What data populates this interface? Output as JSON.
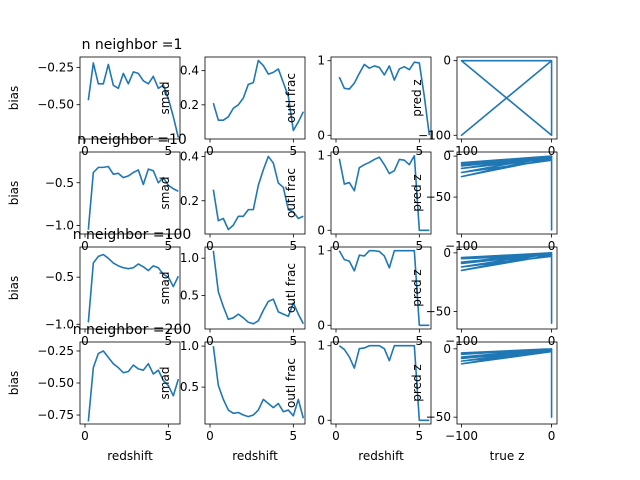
{
  "colors": {
    "series": "#1f77b4",
    "axes": "#000000",
    "background": "#ffffff"
  },
  "chart_data": [
    {
      "type": "line",
      "row_title": "n neighbor =1",
      "ylabel": "bias",
      "xlabel": "",
      "xlim": [
        -0.3,
        5.7
      ],
      "ylim": [
        -0.73,
        -0.18
      ],
      "x": [
        0.2,
        0.5,
        0.8,
        1.1,
        1.4,
        1.7,
        2.0,
        2.3,
        2.6,
        2.9,
        3.2,
        3.5,
        3.8,
        4.1,
        4.4,
        4.7,
        5.0,
        5.3,
        5.6
      ],
      "y": [
        -0.47,
        -0.22,
        -0.36,
        -0.36,
        -0.23,
        -0.37,
        -0.39,
        -0.29,
        -0.36,
        -0.28,
        -0.29,
        -0.34,
        -0.36,
        -0.31,
        -0.39,
        -0.37,
        -0.46,
        -0.58,
        -0.72
      ],
      "xticks": [
        0,
        5
      ],
      "yticks": [
        -0.5,
        -0.25
      ],
      "ytick_labels": [
        "−0.50",
        "−0.25"
      ]
    },
    {
      "type": "line",
      "ylabel": "smad",
      "xlabel": "",
      "xlim": [
        -0.3,
        5.7
      ],
      "ylim": [
        0.0,
        0.48
      ],
      "x": [
        0.2,
        0.5,
        0.8,
        1.1,
        1.4,
        1.7,
        2.0,
        2.3,
        2.6,
        2.9,
        3.2,
        3.5,
        3.8,
        4.1,
        4.4,
        4.7,
        5.0,
        5.3,
        5.6
      ],
      "y": [
        0.21,
        0.11,
        0.11,
        0.13,
        0.18,
        0.2,
        0.24,
        0.32,
        0.33,
        0.46,
        0.43,
        0.38,
        0.39,
        0.41,
        0.33,
        0.25,
        0.05,
        0.1,
        0.16
      ],
      "xticks": [
        0,
        5
      ],
      "yticks": [
        0.2,
        0.4
      ],
      "ytick_labels": [
        "0.2",
        "0.4"
      ]
    },
    {
      "type": "line",
      "ylabel": "outl frac",
      "xlabel": "",
      "xlim": [
        -0.3,
        5.7
      ],
      "ylim": [
        -0.05,
        1.05
      ],
      "x": [
        0.2,
        0.5,
        0.8,
        1.1,
        1.4,
        1.7,
        2.0,
        2.3,
        2.6,
        2.9,
        3.2,
        3.5,
        3.8,
        4.1,
        4.4,
        4.7,
        5.0,
        5.3,
        5.6
      ],
      "y": [
        0.78,
        0.63,
        0.62,
        0.7,
        0.83,
        0.95,
        0.9,
        0.93,
        0.91,
        0.81,
        0.93,
        0.74,
        0.89,
        0.92,
        0.88,
        0.98,
        0.97,
        0.52,
        0.0
      ],
      "xticks": [
        0,
        5
      ],
      "yticks": [
        0,
        1
      ],
      "ytick_labels": [
        "0",
        "1"
      ]
    },
    {
      "type": "line",
      "ylabel": "pred z",
      "xlabel": "",
      "xlim": [
        -105,
        6
      ],
      "ylim": [
        -105,
        5
      ],
      "x": [
        0,
        -100,
        0,
        0,
        -100,
        0,
        0,
        -100,
        0,
        0,
        0
      ],
      "y": [
        0,
        -100,
        0,
        -100,
        0,
        0,
        0,
        0,
        -100,
        0,
        -100
      ],
      "xticks": [
        -100,
        0
      ],
      "yticks": [
        -100,
        0
      ],
      "ytick_labels": [
        "−100",
        "0"
      ]
    },
    {
      "type": "line",
      "row_title": "n neighbor =10",
      "ylabel": "bias",
      "xlabel": "",
      "xlim": [
        -0.3,
        5.7
      ],
      "ylim": [
        -1.1,
        -0.14
      ],
      "x": [
        0.2,
        0.5,
        0.8,
        1.1,
        1.4,
        1.7,
        2.0,
        2.3,
        2.6,
        2.9,
        3.2,
        3.5,
        3.8,
        4.1,
        4.4,
        4.7,
        5.0,
        5.3,
        5.6
      ],
      "y": [
        -1.05,
        -0.38,
        -0.32,
        -0.32,
        -0.31,
        -0.4,
        -0.39,
        -0.44,
        -0.42,
        -0.38,
        -0.35,
        -0.52,
        -0.34,
        -0.36,
        -0.5,
        -0.44,
        -0.53,
        -0.57,
        -0.6
      ],
      "xticks": [
        0,
        5
      ],
      "yticks": [
        -1.0,
        -0.5
      ],
      "ytick_labels": [
        "−1.0",
        "−0.5"
      ]
    },
    {
      "type": "line",
      "ylabel": "smad",
      "xlabel": "",
      "xlim": [
        -0.3,
        5.7
      ],
      "ylim": [
        0.05,
        0.42
      ],
      "x": [
        0.2,
        0.5,
        0.8,
        1.1,
        1.4,
        1.7,
        2.0,
        2.3,
        2.6,
        2.9,
        3.2,
        3.5,
        3.8,
        4.1,
        4.4,
        4.7,
        5.0,
        5.3,
        5.6
      ],
      "y": [
        0.25,
        0.11,
        0.12,
        0.07,
        0.09,
        0.13,
        0.13,
        0.16,
        0.16,
        0.27,
        0.34,
        0.4,
        0.37,
        0.28,
        0.26,
        0.16,
        0.15,
        0.12,
        0.13
      ],
      "xticks": [
        0,
        5
      ],
      "yticks": [
        0.2,
        0.4
      ],
      "ytick_labels": [
        "0.2",
        "0.4"
      ]
    },
    {
      "type": "line",
      "ylabel": "outl frac",
      "xlabel": "",
      "xlim": [
        -0.3,
        5.7
      ],
      "ylim": [
        -0.05,
        1.05
      ],
      "x": [
        0.2,
        0.5,
        0.8,
        1.1,
        1.4,
        1.7,
        2.0,
        2.3,
        2.6,
        2.9,
        3.2,
        3.5,
        3.8,
        4.1,
        4.4,
        4.7,
        5.0,
        5.3,
        5.6
      ],
      "y": [
        0.96,
        0.62,
        0.64,
        0.53,
        0.84,
        0.88,
        0.91,
        0.95,
        0.98,
        0.88,
        0.76,
        0.8,
        0.95,
        0.94,
        0.88,
        1.0,
        0.0,
        0.0,
        0.0
      ],
      "xticks": [
        0,
        5
      ],
      "yticks": [
        0,
        1
      ],
      "ytick_labels": [
        "0",
        "1"
      ]
    },
    {
      "type": "line",
      "ylabel": "pred z",
      "xlabel": "",
      "xlim": [
        -105,
        6
      ],
      "ylim": [
        -95,
        5
      ],
      "x": [
        0,
        -100,
        0,
        0,
        -100,
        0,
        0,
        -100,
        0,
        0,
        -100,
        0,
        0,
        -100,
        0,
        0,
        0,
        -100,
        0,
        0
      ],
      "y": [
        0,
        -15,
        -3,
        0,
        -10,
        -2,
        0,
        -20,
        -5,
        0,
        -25,
        -3,
        0,
        -8,
        0,
        -90,
        0,
        -12,
        -1,
        -85
      ],
      "xticks": [
        -100,
        0
      ],
      "yticks": [
        -50,
        0
      ],
      "ytick_labels": [
        "−50",
        "0"
      ]
    },
    {
      "type": "line",
      "row_title": "n neighbor =100",
      "ylabel": "bias",
      "xlabel": "",
      "xlim": [
        -0.3,
        5.7
      ],
      "ylim": [
        -1.05,
        -0.18
      ],
      "x": [
        0.2,
        0.5,
        0.8,
        1.1,
        1.4,
        1.7,
        2.0,
        2.3,
        2.6,
        2.9,
        3.2,
        3.5,
        3.8,
        4.1,
        4.4,
        4.7,
        5.0,
        5.3,
        5.6
      ],
      "y": [
        -0.98,
        -0.35,
        -0.28,
        -0.26,
        -0.3,
        -0.35,
        -0.38,
        -0.4,
        -0.41,
        -0.4,
        -0.36,
        -0.39,
        -0.43,
        -0.38,
        -0.4,
        -0.47,
        -0.5,
        -0.6,
        -0.49
      ],
      "xticks": [
        0,
        5
      ],
      "yticks": [
        -1.0,
        -0.5
      ],
      "ytick_labels": [
        "−1.0",
        "−0.5"
      ]
    },
    {
      "type": "line",
      "ylabel": "smad",
      "xlabel": "",
      "xlim": [
        -0.3,
        5.7
      ],
      "ylim": [
        0.05,
        1.15
      ],
      "x": [
        0.2,
        0.5,
        0.8,
        1.1,
        1.4,
        1.7,
        2.0,
        2.3,
        2.6,
        2.9,
        3.2,
        3.5,
        3.8,
        4.1,
        4.4,
        4.7,
        5.0,
        5.3,
        5.6
      ],
      "y": [
        1.1,
        0.55,
        0.35,
        0.18,
        0.2,
        0.25,
        0.2,
        0.14,
        0.12,
        0.16,
        0.3,
        0.42,
        0.45,
        0.28,
        0.25,
        0.22,
        0.4,
        0.25,
        0.12
      ],
      "xticks": [
        0,
        5
      ],
      "yticks": [
        0.5,
        1.0
      ],
      "ytick_labels": [
        "0.5",
        "1.0"
      ]
    },
    {
      "type": "line",
      "ylabel": "outl frac",
      "xlabel": "",
      "xlim": [
        -0.3,
        5.7
      ],
      "ylim": [
        -0.05,
        1.05
      ],
      "x": [
        0.2,
        0.5,
        0.8,
        1.1,
        1.4,
        1.7,
        2.0,
        2.3,
        2.6,
        2.9,
        3.2,
        3.5,
        3.8,
        4.1,
        4.4,
        4.7,
        5.0,
        5.3,
        5.6
      ],
      "y": [
        1.0,
        0.88,
        0.86,
        0.73,
        0.94,
        0.93,
        1.0,
        1.0,
        0.99,
        0.93,
        0.77,
        1.0,
        1.0,
        1.0,
        1.0,
        1.0,
        0.0,
        0.0,
        0.0
      ],
      "xticks": [
        0,
        5
      ],
      "yticks": [
        0,
        1
      ],
      "ytick_labels": [
        "0",
        "1"
      ]
    },
    {
      "type": "line",
      "ylabel": "pred z",
      "xlabel": "",
      "xlim": [
        -105,
        6
      ],
      "ylim": [
        -65,
        5
      ],
      "x": [
        0,
        -100,
        0,
        0,
        -100,
        0,
        0,
        -100,
        0,
        0,
        -100,
        0,
        0,
        -100,
        0,
        0,
        0,
        -100,
        0,
        0
      ],
      "y": [
        0,
        -5,
        -2,
        0,
        -8,
        -1,
        0,
        -12,
        -3,
        0,
        -15,
        -2,
        0,
        -4,
        0,
        -60,
        0,
        -9,
        -1,
        -55
      ],
      "xticks": [
        -100,
        0
      ],
      "yticks": [
        -50,
        0
      ],
      "ytick_labels": [
        "−50",
        "0"
      ]
    },
    {
      "type": "line",
      "row_title": "n neighbor =200",
      "ylabel": "bias",
      "xlabel": "redshift",
      "xlim": [
        -0.3,
        5.7
      ],
      "ylim": [
        -0.82,
        -0.18
      ],
      "x": [
        0.2,
        0.5,
        0.8,
        1.1,
        1.4,
        1.7,
        2.0,
        2.3,
        2.6,
        2.9,
        3.2,
        3.5,
        3.8,
        4.1,
        4.4,
        4.7,
        5.0,
        5.3,
        5.6
      ],
      "y": [
        -0.8,
        -0.38,
        -0.27,
        -0.25,
        -0.3,
        -0.35,
        -0.38,
        -0.42,
        -0.41,
        -0.36,
        -0.39,
        -0.4,
        -0.35,
        -0.43,
        -0.4,
        -0.48,
        -0.52,
        -0.6,
        -0.47
      ],
      "xticks": [
        0,
        5
      ],
      "yticks": [
        -0.75,
        -0.5,
        -0.25
      ],
      "ytick_labels": [
        "−0.75",
        "−0.50",
        "−0.25"
      ]
    },
    {
      "type": "line",
      "ylabel": "smad",
      "xlabel": "redshift",
      "xlim": [
        -0.3,
        5.7
      ],
      "ylim": [
        0.05,
        1.05
      ],
      "x": [
        0.2,
        0.5,
        0.8,
        1.1,
        1.4,
        1.7,
        2.0,
        2.3,
        2.6,
        2.9,
        3.2,
        3.5,
        3.8,
        4.1,
        4.4,
        4.7,
        5.0,
        5.3,
        5.6
      ],
      "y": [
        1.0,
        0.52,
        0.35,
        0.22,
        0.18,
        0.19,
        0.16,
        0.14,
        0.16,
        0.22,
        0.35,
        0.3,
        0.25,
        0.3,
        0.2,
        0.22,
        0.15,
        0.35,
        0.12
      ],
      "xticks": [
        0,
        5
      ],
      "yticks": [
        0.5,
        1.0
      ],
      "ytick_labels": [
        "0.5",
        "1.0"
      ]
    },
    {
      "type": "line",
      "ylabel": "outl frac",
      "xlabel": "redshift",
      "xlim": [
        -0.3,
        5.7
      ],
      "ylim": [
        -0.05,
        1.05
      ],
      "x": [
        0.2,
        0.5,
        0.8,
        1.1,
        1.4,
        1.7,
        2.0,
        2.3,
        2.6,
        2.9,
        3.2,
        3.5,
        3.8,
        4.1,
        4.4,
        4.7,
        5.0,
        5.3,
        5.6
      ],
      "y": [
        1.0,
        0.95,
        0.85,
        0.7,
        0.96,
        0.97,
        1.0,
        1.0,
        1.0,
        0.96,
        0.8,
        1.0,
        1.0,
        1.0,
        1.0,
        1.0,
        0.0,
        0.0,
        0.0
      ],
      "xticks": [
        0,
        5
      ],
      "yticks": [
        0,
        1
      ],
      "ytick_labels": [
        "0",
        "1"
      ]
    },
    {
      "type": "line",
      "ylabel": "pred z",
      "xlabel": "true z",
      "xlim": [
        -105,
        6
      ],
      "ylim": [
        -55,
        5
      ],
      "x": [
        0,
        -100,
        0,
        0,
        -100,
        0,
        0,
        -100,
        0,
        0,
        -100,
        0,
        0,
        -100,
        0,
        0,
        0,
        -100,
        0,
        0
      ],
      "y": [
        0,
        -3,
        -1,
        0,
        -6,
        -1,
        0,
        -9,
        -2,
        0,
        -11,
        -2,
        0,
        -4,
        0,
        -50,
        0,
        -7,
        -1,
        -45
      ],
      "xticks": [
        -100,
        0
      ],
      "yticks": [
        -50,
        0
      ],
      "ytick_labels": [
        "−50",
        "0"
      ]
    }
  ]
}
